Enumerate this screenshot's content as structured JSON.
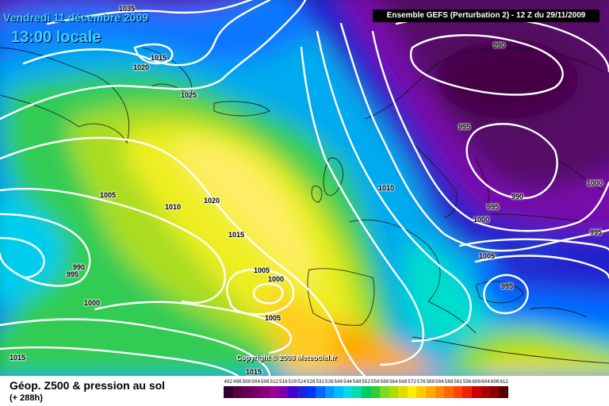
{
  "header": {
    "date": "Vendredi 11 décembre 2009",
    "time": "13:00 locale",
    "run": "Ensemble GEFS (Perturbation 2)  -  12 Z du 29/11/2009"
  },
  "copyright": "Copyright © 2008 Meteociel.fr",
  "footer": {
    "title": "Géop. Z500 & pression au sol",
    "lead": "(+ 288h)"
  },
  "legend": {
    "values": [
      "492",
      "496",
      "500",
      "504",
      "508",
      "512",
      "516",
      "520",
      "524",
      "528",
      "532",
      "536",
      "540",
      "544",
      "548",
      "552",
      "556",
      "560",
      "564",
      "568",
      "572",
      "576",
      "580",
      "584",
      "588",
      "592",
      "596",
      "600",
      "604",
      "608",
      "612"
    ],
    "colors": [
      "#330033",
      "#550044",
      "#660055",
      "#770066",
      "#880077",
      "#990099",
      "#7700aa",
      "#4400cc",
      "#2222dd",
      "#0033ff",
      "#0066ff",
      "#0099ff",
      "#00bbff",
      "#00dddd",
      "#00ddaa",
      "#00cc66",
      "#33cc33",
      "#77dd22",
      "#aadd00",
      "#dddd00",
      "#ffee00",
      "#ffcc00",
      "#ffaa00",
      "#ff8800",
      "#ff6600",
      "#ff4400",
      "#ee2200",
      "#cc0000",
      "#aa0000",
      "#880000",
      "#550000"
    ]
  },
  "isobars": [
    {
      "value": "1035",
      "pos": "a"
    },
    {
      "value": "1015",
      "pos": "b"
    },
    {
      "value": "1020",
      "pos": "c"
    },
    {
      "value": "1025",
      "pos": "d"
    },
    {
      "value": "990",
      "pos": "e"
    },
    {
      "value": "995",
      "pos": "f"
    },
    {
      "value": "990",
      "pos": "g"
    },
    {
      "value": "1010",
      "pos": "h"
    },
    {
      "value": "1000",
      "pos": "i"
    },
    {
      "value": "995",
      "pos": "j"
    },
    {
      "value": "1000",
      "pos": "k"
    },
    {
      "value": "995",
      "pos": "l"
    },
    {
      "value": "1005",
      "pos": "m"
    },
    {
      "value": "995",
      "pos": "n"
    },
    {
      "value": "1005",
      "pos": "o"
    },
    {
      "value": "1010",
      "pos": "p"
    },
    {
      "value": "1020",
      "pos": "q"
    },
    {
      "value": "1015",
      "pos": "r"
    },
    {
      "value": "990",
      "pos": "s"
    },
    {
      "value": "995",
      "pos": "t"
    },
    {
      "value": "1000",
      "pos": "u"
    },
    {
      "value": "1005",
      "pos": "v"
    },
    {
      "value": "1000",
      "pos": "w"
    },
    {
      "value": "1005",
      "pos": "x"
    },
    {
      "value": "1015",
      "pos": "y"
    },
    {
      "value": "1015",
      "pos": "z"
    }
  ]
}
